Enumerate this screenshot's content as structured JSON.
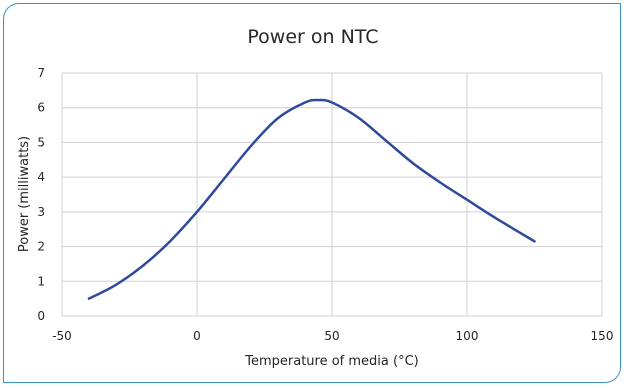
{
  "chart_data": {
    "type": "line",
    "title": "Power on NTC",
    "xlabel": "Temperature of media (°C)",
    "ylabel": "Power (milliwatts)",
    "xlim": [
      -50,
      150
    ],
    "ylim": [
      0,
      7
    ],
    "x_ticks": [
      "-50",
      "0",
      "50",
      "100",
      "150"
    ],
    "y_ticks": [
      "0",
      "1",
      "2",
      "3",
      "4",
      "5",
      "6",
      "7"
    ],
    "grid": true,
    "legend": "none",
    "series": [
      {
        "color": "#2e4b9b",
        "x": [
          -40,
          -30,
          -20,
          -10,
          0,
          10,
          20,
          30,
          40,
          45,
          50,
          60,
          70,
          80,
          90,
          100,
          110,
          125
        ],
        "y": [
          0.5,
          0.9,
          1.45,
          2.15,
          3.0,
          3.95,
          4.9,
          5.7,
          6.15,
          6.22,
          6.15,
          5.7,
          5.05,
          4.4,
          3.85,
          3.35,
          2.85,
          2.15
        ]
      }
    ]
  }
}
